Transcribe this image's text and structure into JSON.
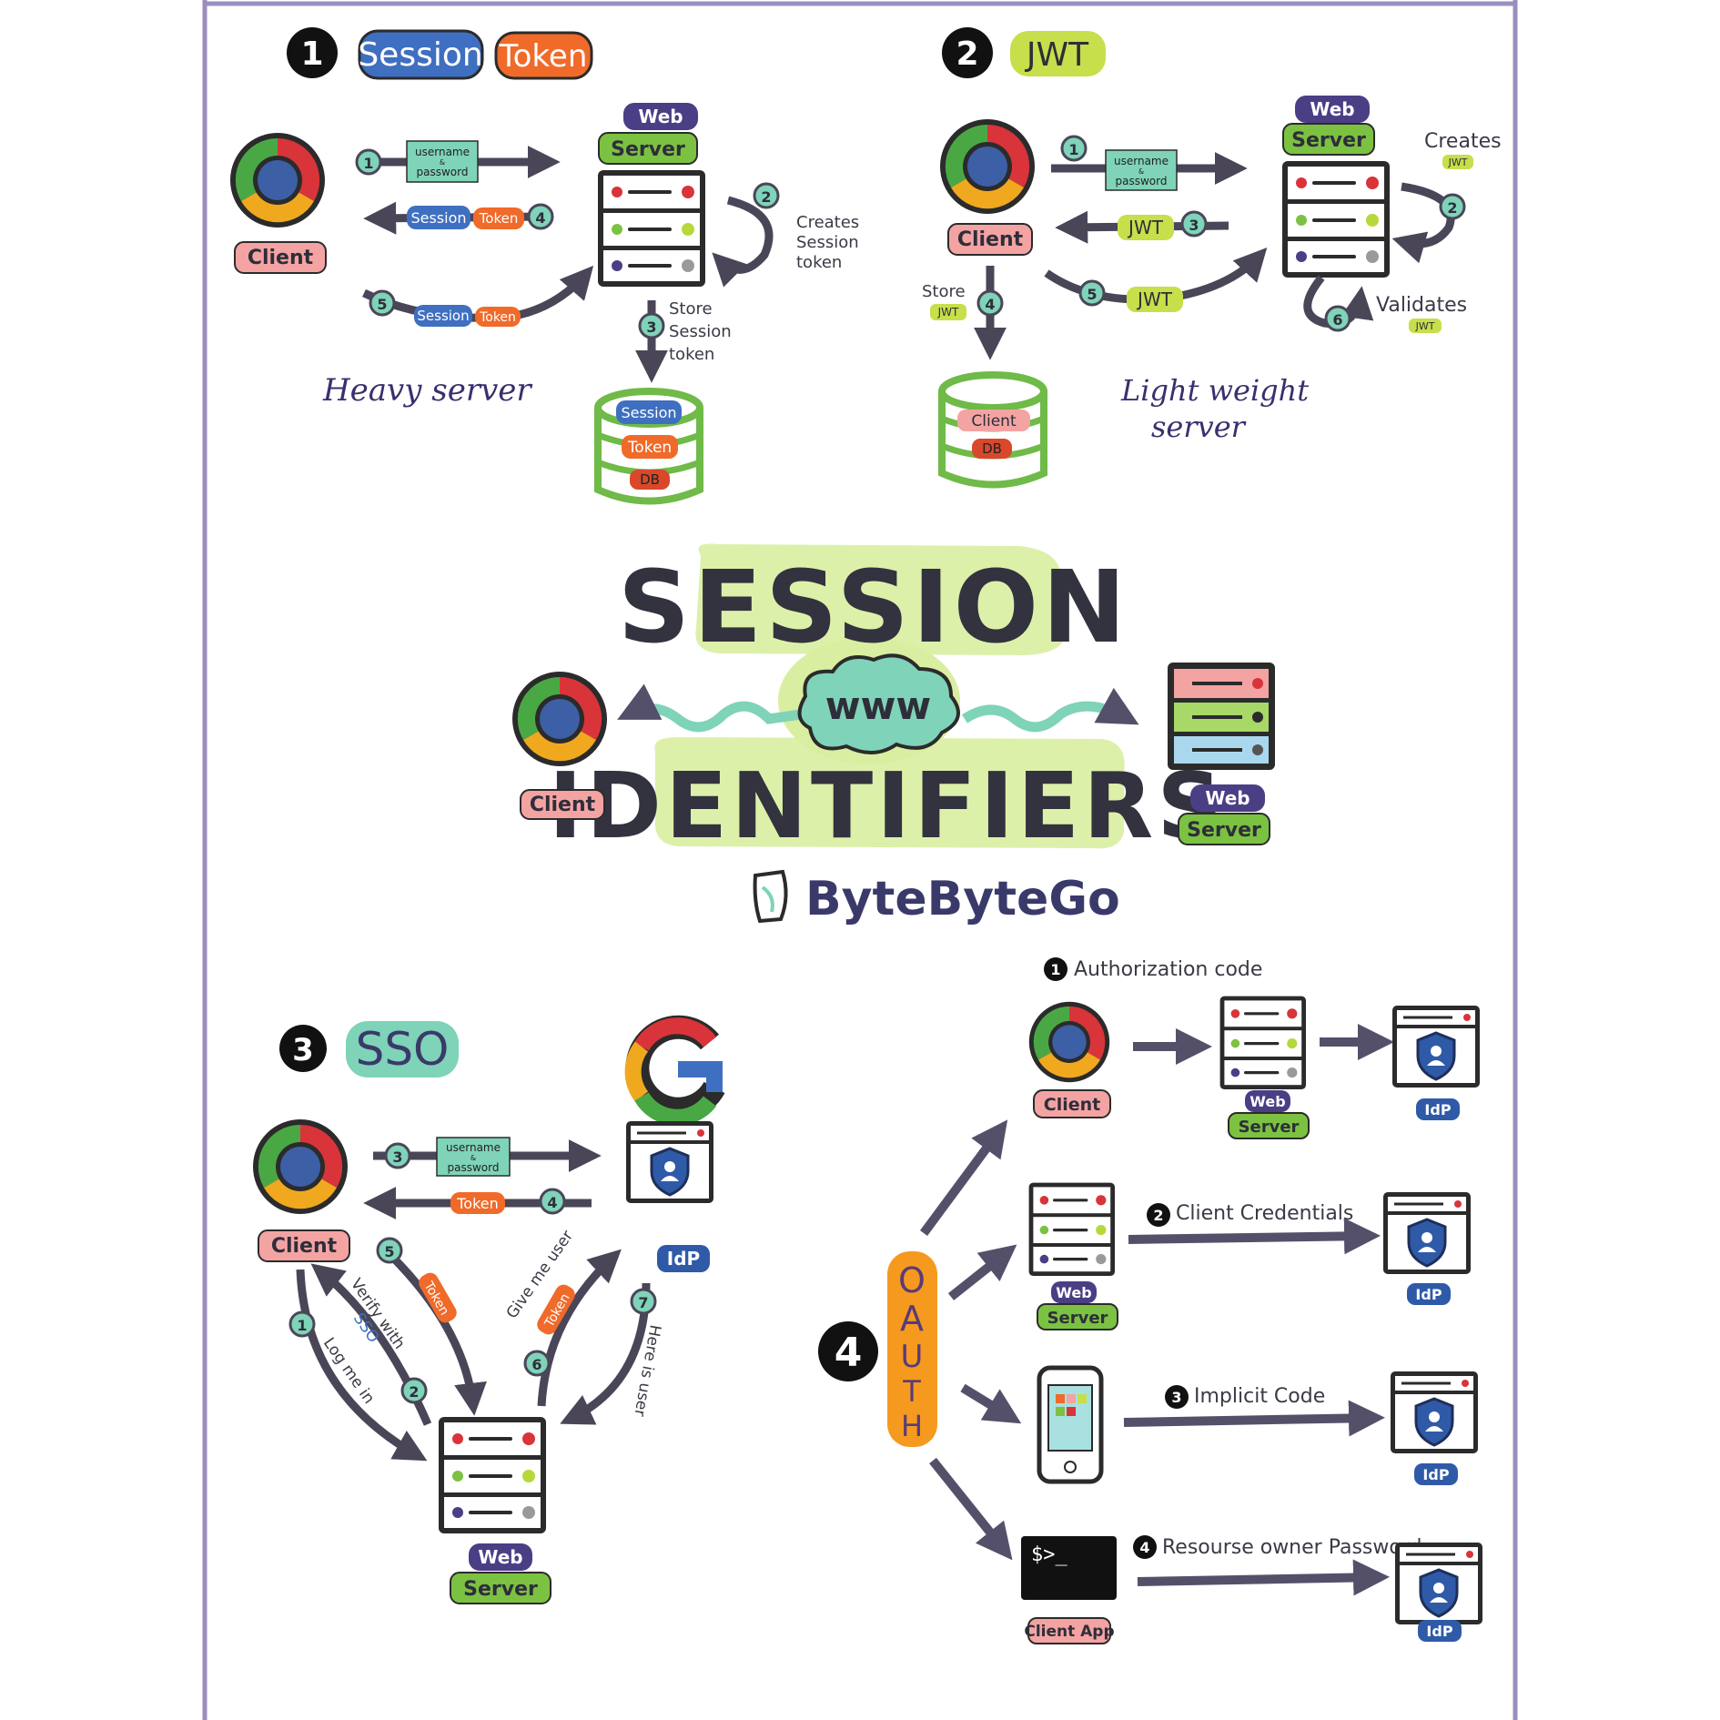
{
  "title": {
    "line1": "Session",
    "line2": "Identifiers",
    "cloud": "www"
  },
  "brand": "ByteByteGo",
  "common": {
    "client": "Client",
    "web": "Web",
    "server": "Server",
    "idp": "IdP",
    "user_pass_1": "username",
    "user_pass_and": "&",
    "user_pass_2": "password"
  },
  "s1": {
    "num": "1",
    "title_a": "Session",
    "title_b": "Token",
    "steps": [
      "1",
      "2",
      "3",
      "4",
      "5"
    ],
    "creates": [
      "Creates",
      "Session",
      "token"
    ],
    "store": [
      "Store",
      "Session",
      "token"
    ],
    "session": "Session",
    "token": "Token",
    "db": "DB",
    "caption": "Heavy server"
  },
  "s2": {
    "num": "2",
    "title": "JWT",
    "steps": [
      "1",
      "2",
      "3",
      "4",
      "5",
      "6"
    ],
    "creates": "Creates",
    "validates": "Validates",
    "store": "Store",
    "jwt": "JWT",
    "client_db": "Client",
    "db": "DB",
    "caption_1": "Light weight",
    "caption_2": "server"
  },
  "s3": {
    "num": "3",
    "title": "SSO",
    "steps": [
      "1",
      "2",
      "3",
      "4",
      "5",
      "6",
      "7"
    ],
    "token": "Token",
    "log_me_in": "Log me in",
    "verify_with": "Verify with",
    "sso": "SSO",
    "give_me_user": "Give me user",
    "here_is_user": "Here is user"
  },
  "s4": {
    "num": "4",
    "oauth": [
      "O",
      "A",
      "U",
      "T",
      "H"
    ],
    "flows": [
      {
        "num": "1",
        "label": "Authorization code"
      },
      {
        "num": "2",
        "label": "Client Credentials"
      },
      {
        "num": "3",
        "label": "Implicit Code"
      },
      {
        "num": "4",
        "label": "Resourse owner Password"
      }
    ],
    "client_app": "Client App",
    "terminal": "$>_"
  },
  "colors": {
    "ink": "#2e2e3a",
    "client_pink": "#f4a3a3",
    "web_purple": "#4a3f85",
    "server_green": "#7cc242",
    "session_blue": "#3f6fc0",
    "token_orange": "#f06a2a",
    "jwt_lime": "#c6df4a",
    "teal": "#7fd3b8",
    "idp_blue": "#2f5aa8",
    "oauth_orange": "#f59a1e"
  }
}
